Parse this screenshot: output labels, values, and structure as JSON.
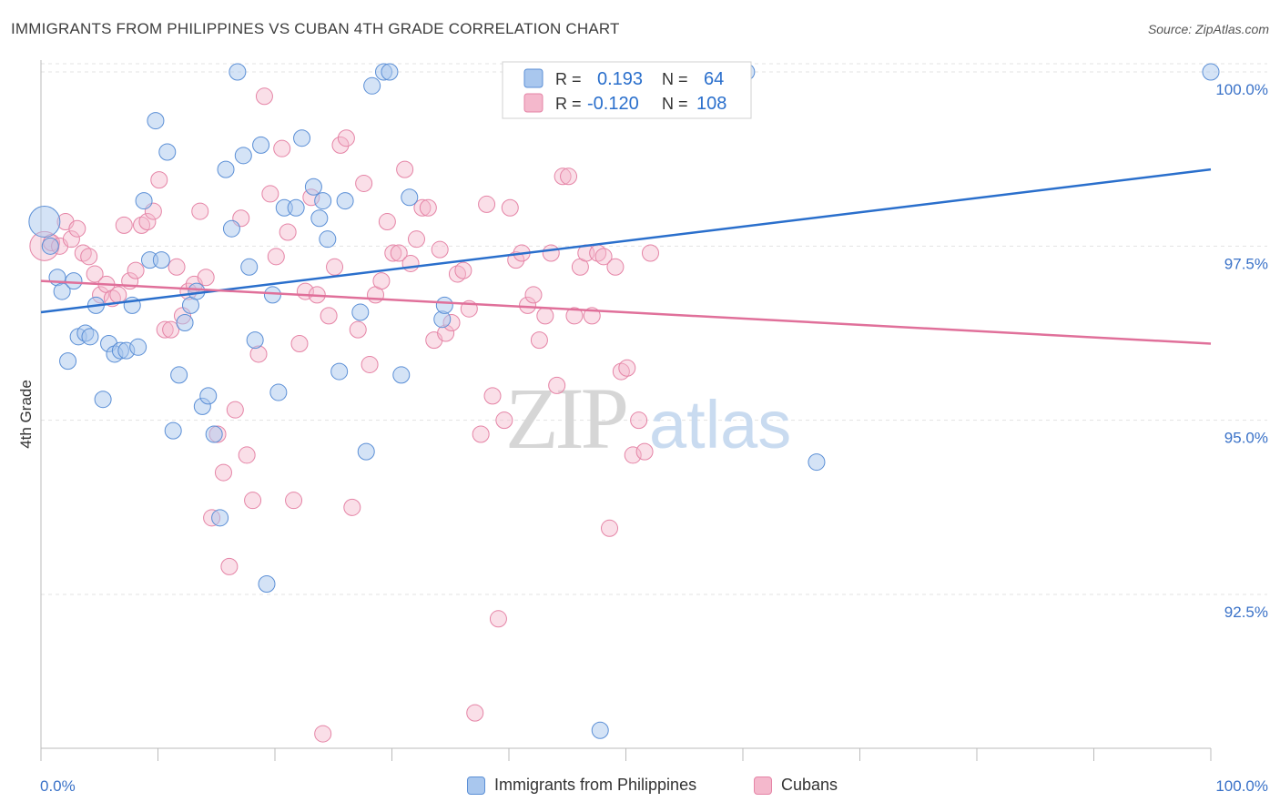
{
  "title": "IMMIGRANTS FROM PHILIPPINES VS CUBAN 4TH GRADE CORRELATION CHART",
  "source": "Source: ZipAtlas.com",
  "watermark": {
    "zip": "ZIP",
    "atlas": "atlas"
  },
  "colors": {
    "blue_fill": "#a9c7ee",
    "blue_stroke": "#5b8fd6",
    "blue_line": "#2a6fcc",
    "pink_fill": "#f4b8cc",
    "pink_stroke": "#e584a6",
    "pink_line": "#e0709a",
    "axis_label": "#3a72c8",
    "grid": "#e3e3e3"
  },
  "stats": {
    "blue": {
      "r_label": "R =",
      "r": "0.193",
      "n_label": "N =",
      "n": "64"
    },
    "pink": {
      "r_label": "R =",
      "r": "-0.120",
      "n_label": "N =",
      "n": "108"
    }
  },
  "legend": {
    "blue": "Immigrants from Philippines",
    "pink": "Cubans"
  },
  "chart_data": {
    "type": "scatter",
    "title": "IMMIGRANTS FROM PHILIPPINES VS CUBAN 4TH GRADE CORRELATION CHART",
    "xlabel": "",
    "ylabel": "4th Grade",
    "xlim": [
      0,
      100
    ],
    "ylim": [
      90.0,
      100.5
    ],
    "x_tick_labels": [
      "0.0%",
      "100.0%"
    ],
    "y_ticks": [
      92.5,
      95.0,
      97.5,
      100.0
    ],
    "y_tick_labels": [
      "92.5%",
      "95.0%",
      "97.5%",
      "100.0%"
    ],
    "grid": true,
    "legend_position": "bottom",
    "series": [
      {
        "name": "Immigrants from Philippines",
        "color": "#a9c7ee",
        "trend": {
          "x": [
            0,
            100
          ],
          "y": [
            96.55,
            98.6
          ]
        },
        "points": [
          [
            0.3,
            97.85
          ],
          [
            0.8,
            97.5
          ],
          [
            1.4,
            97.05
          ],
          [
            1.8,
            96.85
          ],
          [
            2.3,
            95.85
          ],
          [
            2.8,
            97.0
          ],
          [
            3.2,
            96.2
          ],
          [
            3.8,
            96.25
          ],
          [
            4.2,
            96.2
          ],
          [
            4.7,
            96.65
          ],
          [
            5.3,
            95.3
          ],
          [
            5.8,
            96.1
          ],
          [
            6.3,
            95.95
          ],
          [
            6.8,
            96.0
          ],
          [
            7.3,
            96.0
          ],
          [
            7.8,
            96.65
          ],
          [
            8.3,
            96.05
          ],
          [
            8.8,
            98.15
          ],
          [
            9.3,
            97.3
          ],
          [
            9.8,
            99.3
          ],
          [
            10.3,
            97.3
          ],
          [
            10.8,
            98.85
          ],
          [
            11.3,
            94.85
          ],
          [
            11.8,
            95.65
          ],
          [
            12.3,
            96.4
          ],
          [
            12.8,
            96.65
          ],
          [
            13.3,
            96.85
          ],
          [
            13.8,
            95.2
          ],
          [
            14.3,
            95.35
          ],
          [
            14.8,
            94.8
          ],
          [
            15.3,
            93.6
          ],
          [
            15.8,
            98.6
          ],
          [
            16.3,
            97.75
          ],
          [
            16.8,
            100.0
          ],
          [
            17.3,
            98.8
          ],
          [
            17.8,
            97.2
          ],
          [
            18.3,
            96.15
          ],
          [
            18.8,
            98.95
          ],
          [
            19.3,
            92.65
          ],
          [
            19.8,
            96.8
          ],
          [
            20.3,
            95.4
          ],
          [
            20.8,
            98.05
          ],
          [
            21.8,
            98.05
          ],
          [
            22.3,
            99.05
          ],
          [
            23.3,
            98.35
          ],
          [
            23.8,
            97.9
          ],
          [
            24.1,
            98.15
          ],
          [
            24.5,
            97.6
          ],
          [
            25.5,
            95.7
          ],
          [
            26.0,
            98.15
          ],
          [
            27.3,
            96.55
          ],
          [
            27.8,
            94.55
          ],
          [
            28.3,
            99.8
          ],
          [
            29.3,
            100.0
          ],
          [
            29.8,
            100.0
          ],
          [
            30.8,
            95.65
          ],
          [
            31.5,
            98.2
          ],
          [
            34.3,
            96.45
          ],
          [
            34.5,
            96.65
          ],
          [
            47.8,
            90.55
          ],
          [
            57.3,
            100.0
          ],
          [
            60.3,
            100.0
          ],
          [
            66.3,
            94.4
          ],
          [
            100.0,
            100.0
          ]
        ]
      },
      {
        "name": "Cubans",
        "color": "#f4b8cc",
        "trend": {
          "x": [
            0,
            100
          ],
          "y": [
            97.0,
            96.1
          ]
        },
        "points": [
          [
            0.3,
            97.5
          ],
          [
            0.9,
            97.55
          ],
          [
            1.6,
            97.5
          ],
          [
            2.1,
            97.85
          ],
          [
            2.6,
            97.6
          ],
          [
            3.1,
            97.75
          ],
          [
            3.6,
            97.4
          ],
          [
            4.1,
            97.35
          ],
          [
            4.6,
            97.1
          ],
          [
            5.1,
            96.8
          ],
          [
            5.6,
            96.95
          ],
          [
            6.1,
            96.75
          ],
          [
            6.6,
            96.8
          ],
          [
            7.1,
            97.8
          ],
          [
            7.6,
            97.0
          ],
          [
            8.1,
            97.15
          ],
          [
            8.6,
            97.8
          ],
          [
            9.1,
            97.85
          ],
          [
            9.6,
            98.0
          ],
          [
            10.1,
            98.45
          ],
          [
            10.6,
            96.3
          ],
          [
            11.1,
            96.3
          ],
          [
            11.6,
            97.2
          ],
          [
            12.1,
            96.5
          ],
          [
            12.6,
            96.85
          ],
          [
            13.1,
            96.95
          ],
          [
            13.6,
            98.0
          ],
          [
            14.1,
            97.05
          ],
          [
            14.6,
            93.6
          ],
          [
            15.1,
            94.8
          ],
          [
            15.6,
            94.25
          ],
          [
            16.1,
            92.9
          ],
          [
            16.6,
            95.15
          ],
          [
            17.1,
            97.9
          ],
          [
            17.6,
            94.5
          ],
          [
            18.1,
            93.85
          ],
          [
            18.6,
            95.95
          ],
          [
            19.1,
            99.65
          ],
          [
            19.6,
            98.25
          ],
          [
            20.1,
            97.35
          ],
          [
            20.6,
            98.9
          ],
          [
            21.1,
            97.7
          ],
          [
            21.6,
            93.85
          ],
          [
            22.1,
            96.1
          ],
          [
            22.6,
            96.85
          ],
          [
            23.1,
            98.2
          ],
          [
            23.6,
            96.8
          ],
          [
            24.1,
            90.5
          ],
          [
            24.6,
            96.5
          ],
          [
            25.1,
            97.2
          ],
          [
            25.6,
            98.95
          ],
          [
            26.1,
            99.05
          ],
          [
            26.6,
            93.75
          ],
          [
            27.1,
            96.3
          ],
          [
            27.6,
            98.4
          ],
          [
            28.1,
            95.8
          ],
          [
            28.6,
            96.8
          ],
          [
            29.1,
            97.0
          ],
          [
            29.6,
            97.85
          ],
          [
            30.1,
            97.4
          ],
          [
            30.6,
            97.4
          ],
          [
            31.1,
            98.6
          ],
          [
            31.6,
            97.25
          ],
          [
            32.1,
            97.6
          ],
          [
            32.6,
            98.05
          ],
          [
            33.1,
            98.05
          ],
          [
            33.6,
            96.15
          ],
          [
            34.1,
            97.45
          ],
          [
            34.6,
            96.25
          ],
          [
            35.1,
            96.4
          ],
          [
            35.6,
            97.1
          ],
          [
            36.1,
            97.15
          ],
          [
            36.6,
            96.6
          ],
          [
            37.1,
            90.8
          ],
          [
            37.6,
            94.8
          ],
          [
            38.1,
            98.1
          ],
          [
            38.6,
            95.35
          ],
          [
            39.1,
            92.15
          ],
          [
            39.6,
            95.0
          ],
          [
            40.1,
            98.05
          ],
          [
            40.6,
            97.3
          ],
          [
            41.1,
            97.4
          ],
          [
            41.6,
            96.65
          ],
          [
            42.1,
            96.8
          ],
          [
            42.6,
            96.15
          ],
          [
            43.1,
            96.5
          ],
          [
            43.6,
            97.4
          ],
          [
            44.1,
            95.5
          ],
          [
            44.6,
            98.5
          ],
          [
            45.1,
            98.5
          ],
          [
            45.6,
            96.5
          ],
          [
            46.1,
            97.2
          ],
          [
            46.6,
            97.4
          ],
          [
            47.1,
            96.5
          ],
          [
            47.6,
            97.4
          ],
          [
            48.1,
            97.35
          ],
          [
            48.6,
            93.45
          ],
          [
            49.1,
            97.2
          ],
          [
            49.6,
            95.7
          ],
          [
            50.1,
            95.75
          ],
          [
            50.6,
            94.5
          ],
          [
            51.1,
            95.0
          ],
          [
            51.6,
            94.55
          ],
          [
            52.1,
            97.4
          ],
          [
            52.6,
            100.0
          ],
          [
            53.1,
            99.7
          ],
          [
            53.6,
            100.0
          ],
          [
            54.1,
            99.8
          ]
        ]
      }
    ]
  }
}
